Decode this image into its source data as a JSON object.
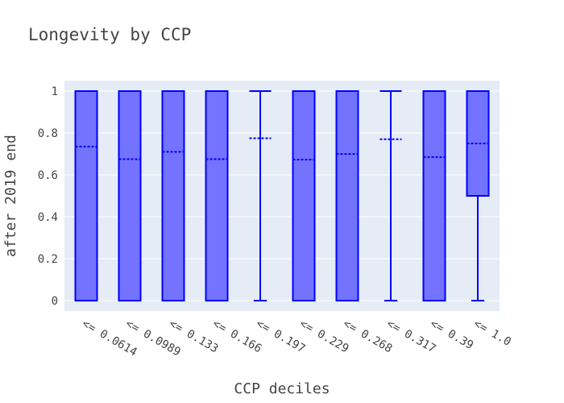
{
  "chart_data": {
    "type": "box",
    "title": "Longevity by CCP",
    "xlabel": "CCP deciles",
    "ylabel": "after 2019 end",
    "ylim": [
      -0.05,
      1.05
    ],
    "yticks": [
      0,
      0.2,
      0.4,
      0.6,
      0.8,
      1
    ],
    "ytick_labels": [
      "0",
      "0.2",
      "0.4",
      "0.6",
      "0.8",
      "1"
    ],
    "categories": [
      "<= 0.0614",
      "<= 0.0989",
      "<= 0.133",
      "<= 0.166",
      "<= 0.197",
      "<= 0.229",
      "<= 0.268",
      "<= 0.317",
      "<= 0.39",
      "<= 1.0"
    ],
    "boxes": [
      {
        "min": 0,
        "q1": 0,
        "median": 1,
        "q3": 1,
        "max": 1,
        "mean": 0.735
      },
      {
        "min": 0,
        "q1": 0,
        "median": 1,
        "q3": 1,
        "max": 1,
        "mean": 0.675
      },
      {
        "min": 0,
        "q1": 0,
        "median": 1,
        "q3": 1,
        "max": 1,
        "mean": 0.71
      },
      {
        "min": 0,
        "q1": 0,
        "median": 1,
        "q3": 1,
        "max": 1,
        "mean": 0.675
      },
      {
        "min": 0,
        "q1": 1,
        "median": 1,
        "q3": 1,
        "max": 1,
        "mean": 0.775
      },
      {
        "min": 0,
        "q1": 0,
        "median": 1,
        "q3": 1,
        "max": 1,
        "mean": 0.673
      },
      {
        "min": 0,
        "q1": 0,
        "median": 1,
        "q3": 1,
        "max": 1,
        "mean": 0.7
      },
      {
        "min": 0,
        "q1": 1,
        "median": 1,
        "q3": 1,
        "max": 1,
        "mean": 0.77
      },
      {
        "min": 0,
        "q1": 0,
        "median": 1,
        "q3": 1,
        "max": 1,
        "mean": 0.685
      },
      {
        "min": 0,
        "q1": 0.5,
        "median": 1,
        "q3": 1,
        "max": 1,
        "mean": 0.75
      }
    ],
    "colors": {
      "box_fill": "#7373ff",
      "box_line": "#0000ff",
      "plot_bg": "#e5ecf6",
      "grid": "#ffffff",
      "text": "#444444"
    },
    "grid": true,
    "legend": "none"
  }
}
